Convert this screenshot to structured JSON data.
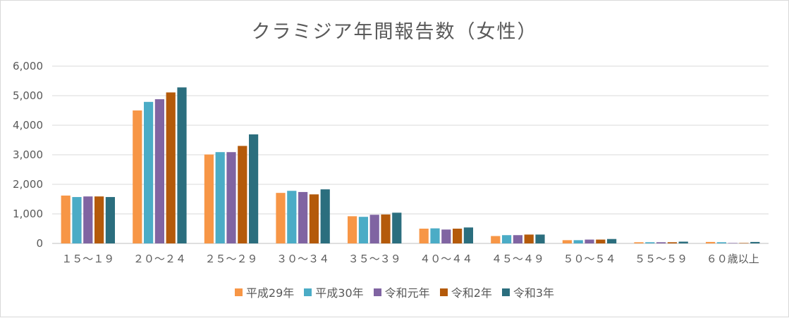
{
  "chart_data": {
    "type": "bar",
    "title": "クラミジア年間報告数（女性）",
    "categories": [
      "１５〜１９",
      "２０〜２４",
      "２５〜２９",
      "３０〜３４",
      "３５〜３９",
      "４０〜４４",
      "４５〜４９",
      "５０〜５４",
      "５５〜５９",
      "６０歳以上"
    ],
    "series": [
      {
        "name": "平成29年",
        "color": "#f79646",
        "values": [
          1620,
          4500,
          3010,
          1710,
          920,
          500,
          250,
          110,
          40,
          50
        ]
      },
      {
        "name": "平成30年",
        "color": "#4bacc6",
        "values": [
          1570,
          4790,
          3090,
          1780,
          900,
          510,
          280,
          110,
          40,
          40
        ]
      },
      {
        "name": "令和元年",
        "color": "#8064a2",
        "values": [
          1590,
          4880,
          3090,
          1740,
          970,
          470,
          280,
          130,
          40,
          15
        ]
      },
      {
        "name": "令和2年",
        "color": "#b45a0a",
        "values": [
          1590,
          5110,
          3300,
          1660,
          980,
          500,
          300,
          130,
          40,
          15
        ]
      },
      {
        "name": "令和3年",
        "color": "#2b6e7e",
        "values": [
          1570,
          5280,
          3690,
          1830,
          1040,
          540,
          300,
          150,
          60,
          50
        ]
      }
    ],
    "yticks": [
      "0",
      "1,000",
      "2,000",
      "3,000",
      "4,000",
      "5,000",
      "6,000"
    ],
    "ylim": [
      0,
      6000
    ],
    "grid": true,
    "legend_position": "bottom"
  }
}
